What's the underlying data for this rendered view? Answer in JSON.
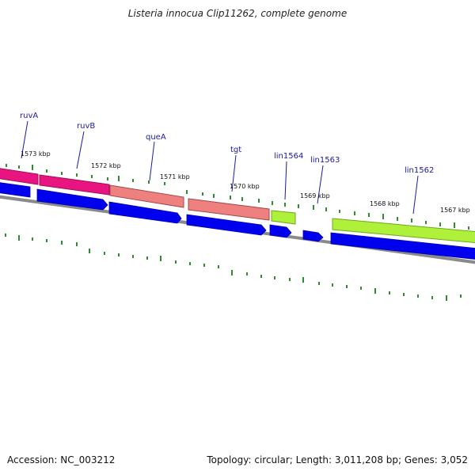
{
  "title": "Listeria innocua Clip11262, complete genome",
  "accession": "Accession: NC_003212",
  "summary": "Topology: circular; Length: 3,011,208 bp; Genes: 3,052",
  "genes": [
    {
      "name": "ruvA",
      "color": "#e8147f"
    },
    {
      "name": "ruvB",
      "color": "#e8147f"
    },
    {
      "name": "queA",
      "color": "#ee8080"
    },
    {
      "name": "tgt",
      "color": "#ee8080"
    },
    {
      "name": "lin1564",
      "color": "#aef03a"
    },
    {
      "name": "lin1563",
      "color": null
    },
    {
      "name": "lin1562",
      "color": "#aef03a"
    }
  ],
  "kbp_labels": [
    "1573 kbp",
    "1572 kbp",
    "1571 kbp",
    "1570 kbp",
    "1569 kbp",
    "1568 kbp",
    "1567 kbp"
  ],
  "colors": {
    "cds_arrow": "#0000ee",
    "backbone": "#8a8a8a",
    "tick": "#2e8b2e",
    "label_text": "#1a1aa0"
  }
}
